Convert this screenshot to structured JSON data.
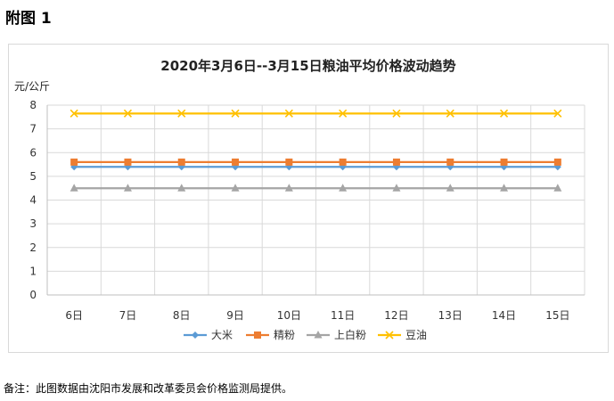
{
  "page": {
    "heading": "附图 1",
    "note": "备注：此图数据由沈阳市发展和改革委员会价格监测局提供。"
  },
  "chart_data": {
    "type": "line",
    "title": "2020年3月6日--3月15日粮油平均价格波动趋势",
    "ylabel": "元/公斤",
    "xlabel": "",
    "categories": [
      "6日",
      "7日",
      "8日",
      "9日",
      "10日",
      "11日",
      "12日",
      "13日",
      "14日",
      "15日"
    ],
    "ylim": [
      0,
      8
    ],
    "yticks": [
      0,
      1,
      2,
      3,
      4,
      5,
      6,
      7,
      8
    ],
    "grid": true,
    "legend_position": "bottom",
    "series": [
      {
        "name": "大米",
        "color": "#5b9bd5",
        "marker": "diamond",
        "values": [
          5.4,
          5.4,
          5.4,
          5.4,
          5.4,
          5.4,
          5.4,
          5.4,
          5.4,
          5.4
        ]
      },
      {
        "name": "精粉",
        "color": "#ed7d31",
        "marker": "square",
        "values": [
          5.6,
          5.6,
          5.6,
          5.6,
          5.6,
          5.6,
          5.6,
          5.6,
          5.6,
          5.6
        ]
      },
      {
        "name": "上白粉",
        "color": "#a5a5a5",
        "marker": "triangle",
        "values": [
          4.5,
          4.5,
          4.5,
          4.5,
          4.5,
          4.5,
          4.5,
          4.5,
          4.5,
          4.5
        ]
      },
      {
        "name": "豆油",
        "color": "#ffc000",
        "marker": "x",
        "values": [
          7.65,
          7.65,
          7.65,
          7.65,
          7.65,
          7.65,
          7.65,
          7.65,
          7.65,
          7.65
        ]
      }
    ]
  }
}
